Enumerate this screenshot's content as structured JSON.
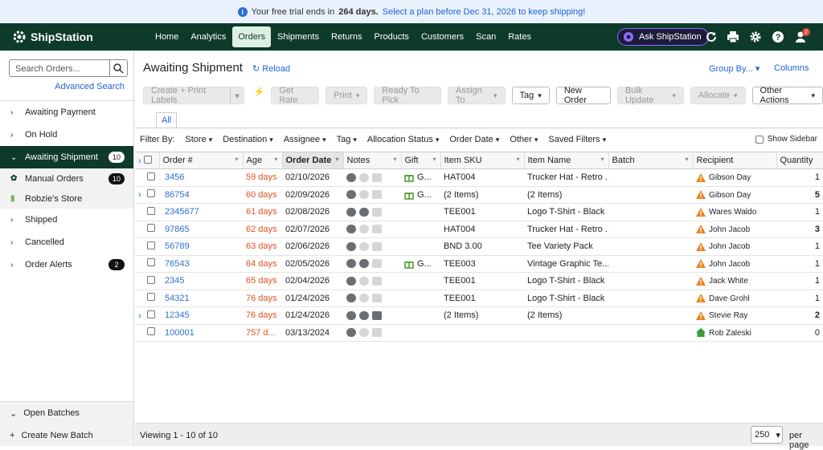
{
  "banner": {
    "text": "Your free trial ends in",
    "days": "264 days.",
    "link": "Select a plan before Dec 31, 2026 to keep shipping!"
  },
  "nav": {
    "logo": "ShipStation",
    "items": [
      "Home",
      "Analytics",
      "Orders",
      "Shipments",
      "Returns",
      "Products",
      "Customers",
      "Scan",
      "Rates"
    ],
    "active": 2,
    "ask": "Ask ShipStation",
    "badge": "2"
  },
  "sidebar": {
    "search_placeholder": "Search Orders...",
    "advanced": "Advanced Search",
    "items": [
      {
        "label": "Awaiting Payment",
        "chevron": "right"
      },
      {
        "label": "On Hold",
        "chevron": "right"
      },
      {
        "label": "Awaiting Shipment",
        "count": "10",
        "chevron": "down",
        "selected": true
      },
      {
        "label": "Manual Orders",
        "count": "10",
        "sub": true,
        "icon": "gear"
      },
      {
        "label": "Robzie's Store",
        "sub": true,
        "icon": "shop"
      },
      {
        "label": "Shipped",
        "chevron": "right"
      },
      {
        "label": "Cancelled",
        "chevron": "right"
      },
      {
        "label": "Order Alerts",
        "count": "2",
        "chevron": "right"
      }
    ],
    "open_batches": "Open Batches",
    "create_batch": "Create New Batch"
  },
  "main": {
    "title": "Awaiting Shipment",
    "reload": "Reload",
    "group_by": "Group By...",
    "columns_link": "Columns",
    "toolbar": [
      {
        "label": "Create + Print Labels",
        "disabled": true,
        "split": true
      },
      {
        "label": "Get Rate",
        "disabled": true
      },
      {
        "label": "Print",
        "disabled": true,
        "menu": true
      },
      {
        "label": "Ready To Pick",
        "disabled": true
      },
      {
        "label": "Assign To",
        "disabled": true,
        "menu": true
      },
      {
        "label": "Tag",
        "menu": true
      },
      {
        "label": "New Order"
      },
      {
        "label": "Bulk Update",
        "disabled": true,
        "menu": true
      },
      {
        "label": "Allocate",
        "disabled": true,
        "menu": true
      },
      {
        "label": "Other Actions",
        "menu": true
      }
    ],
    "tab": "All",
    "filter_label": "Filter By:",
    "filters": [
      "Store",
      "Destination",
      "Assignee",
      "Tag",
      "Allocation Status",
      "Order Date",
      "Other",
      "Saved Filters"
    ],
    "show_sidebar": "Show Sidebar"
  },
  "table": {
    "columns": [
      "Order #",
      "Age",
      "Order Date",
      "Notes",
      "Gift",
      "Item SKU",
      "Item Name",
      "Batch",
      "Recipient",
      "Quantity"
    ],
    "sorted": 2,
    "rows": [
      {
        "order": "3456",
        "age": "59 days",
        "date": "02/10/2026",
        "gift": "G...",
        "sku": "HAT004",
        "item": "Trucker Hat - Retro ...",
        "recipient": "Gibson Day",
        "qty": 1,
        "icon": "warning"
      },
      {
        "order": "86754",
        "age": "60 days",
        "date": "02/09/2026",
        "gift": "G...",
        "sku": "(2 Items)",
        "item": "(2 Items)",
        "recipient": "Gibson Day",
        "qty": 5,
        "icon": "warning",
        "expandable": true
      },
      {
        "order": "2345677",
        "age": "61 days",
        "date": "02/08/2026",
        "gift": null,
        "sku": "TEE001",
        "item": "Logo T-Shirt - Black",
        "recipient": "Wares Waldo",
        "qty": 1,
        "icon": "warning"
      },
      {
        "order": "97865",
        "age": "62 days",
        "date": "02/07/2026",
        "gift": null,
        "sku": "HAT004",
        "item": "Trucker Hat - Retro ...",
        "recipient": "John Jacob",
        "qty": 3,
        "icon": "warning"
      },
      {
        "order": "56789",
        "age": "63 days",
        "date": "02/06/2026",
        "gift": null,
        "sku": "BND 3.00",
        "item": "Tee Variety Pack",
        "recipient": "John Jacob",
        "qty": 1,
        "icon": "warning"
      },
      {
        "order": "76543",
        "age": "64 days",
        "date": "02/05/2026",
        "gift": "G...",
        "sku": "TEE003",
        "item": "Vintage Graphic Te...",
        "recipient": "John Jacob",
        "qty": 1,
        "icon": "warning"
      },
      {
        "order": "2345",
        "age": "65 days",
        "date": "02/04/2026",
        "gift": null,
        "sku": "TEE001",
        "item": "Logo T-Shirt - Black",
        "recipient": "Jack White",
        "qty": 1,
        "icon": "warning"
      },
      {
        "order": "54321",
        "age": "76 days",
        "date": "01/24/2026",
        "gift": null,
        "sku": "TEE001",
        "item": "Logo T-Shirt - Black",
        "recipient": "Dave Grohl",
        "qty": 1,
        "icon": "warning"
      },
      {
        "order": "12345",
        "age": "76 days",
        "date": "01/24/2026",
        "gift": null,
        "sku": "(2 Items)",
        "item": "(2 Items)",
        "recipient": "Stevie Ray",
        "qty": 2,
        "icon": "warning",
        "expandable": true
      },
      {
        "order": "100001",
        "age": "757 d...",
        "date": "03/13/2024",
        "gift": null,
        "sku": null,
        "item": null,
        "recipient": "Rob Zaleski",
        "qty": 0,
        "icon": "home"
      }
    ]
  },
  "footer": {
    "viewing": "Viewing 1 - 10 of 10",
    "per_page_value": "250",
    "per_page": "per page"
  }
}
